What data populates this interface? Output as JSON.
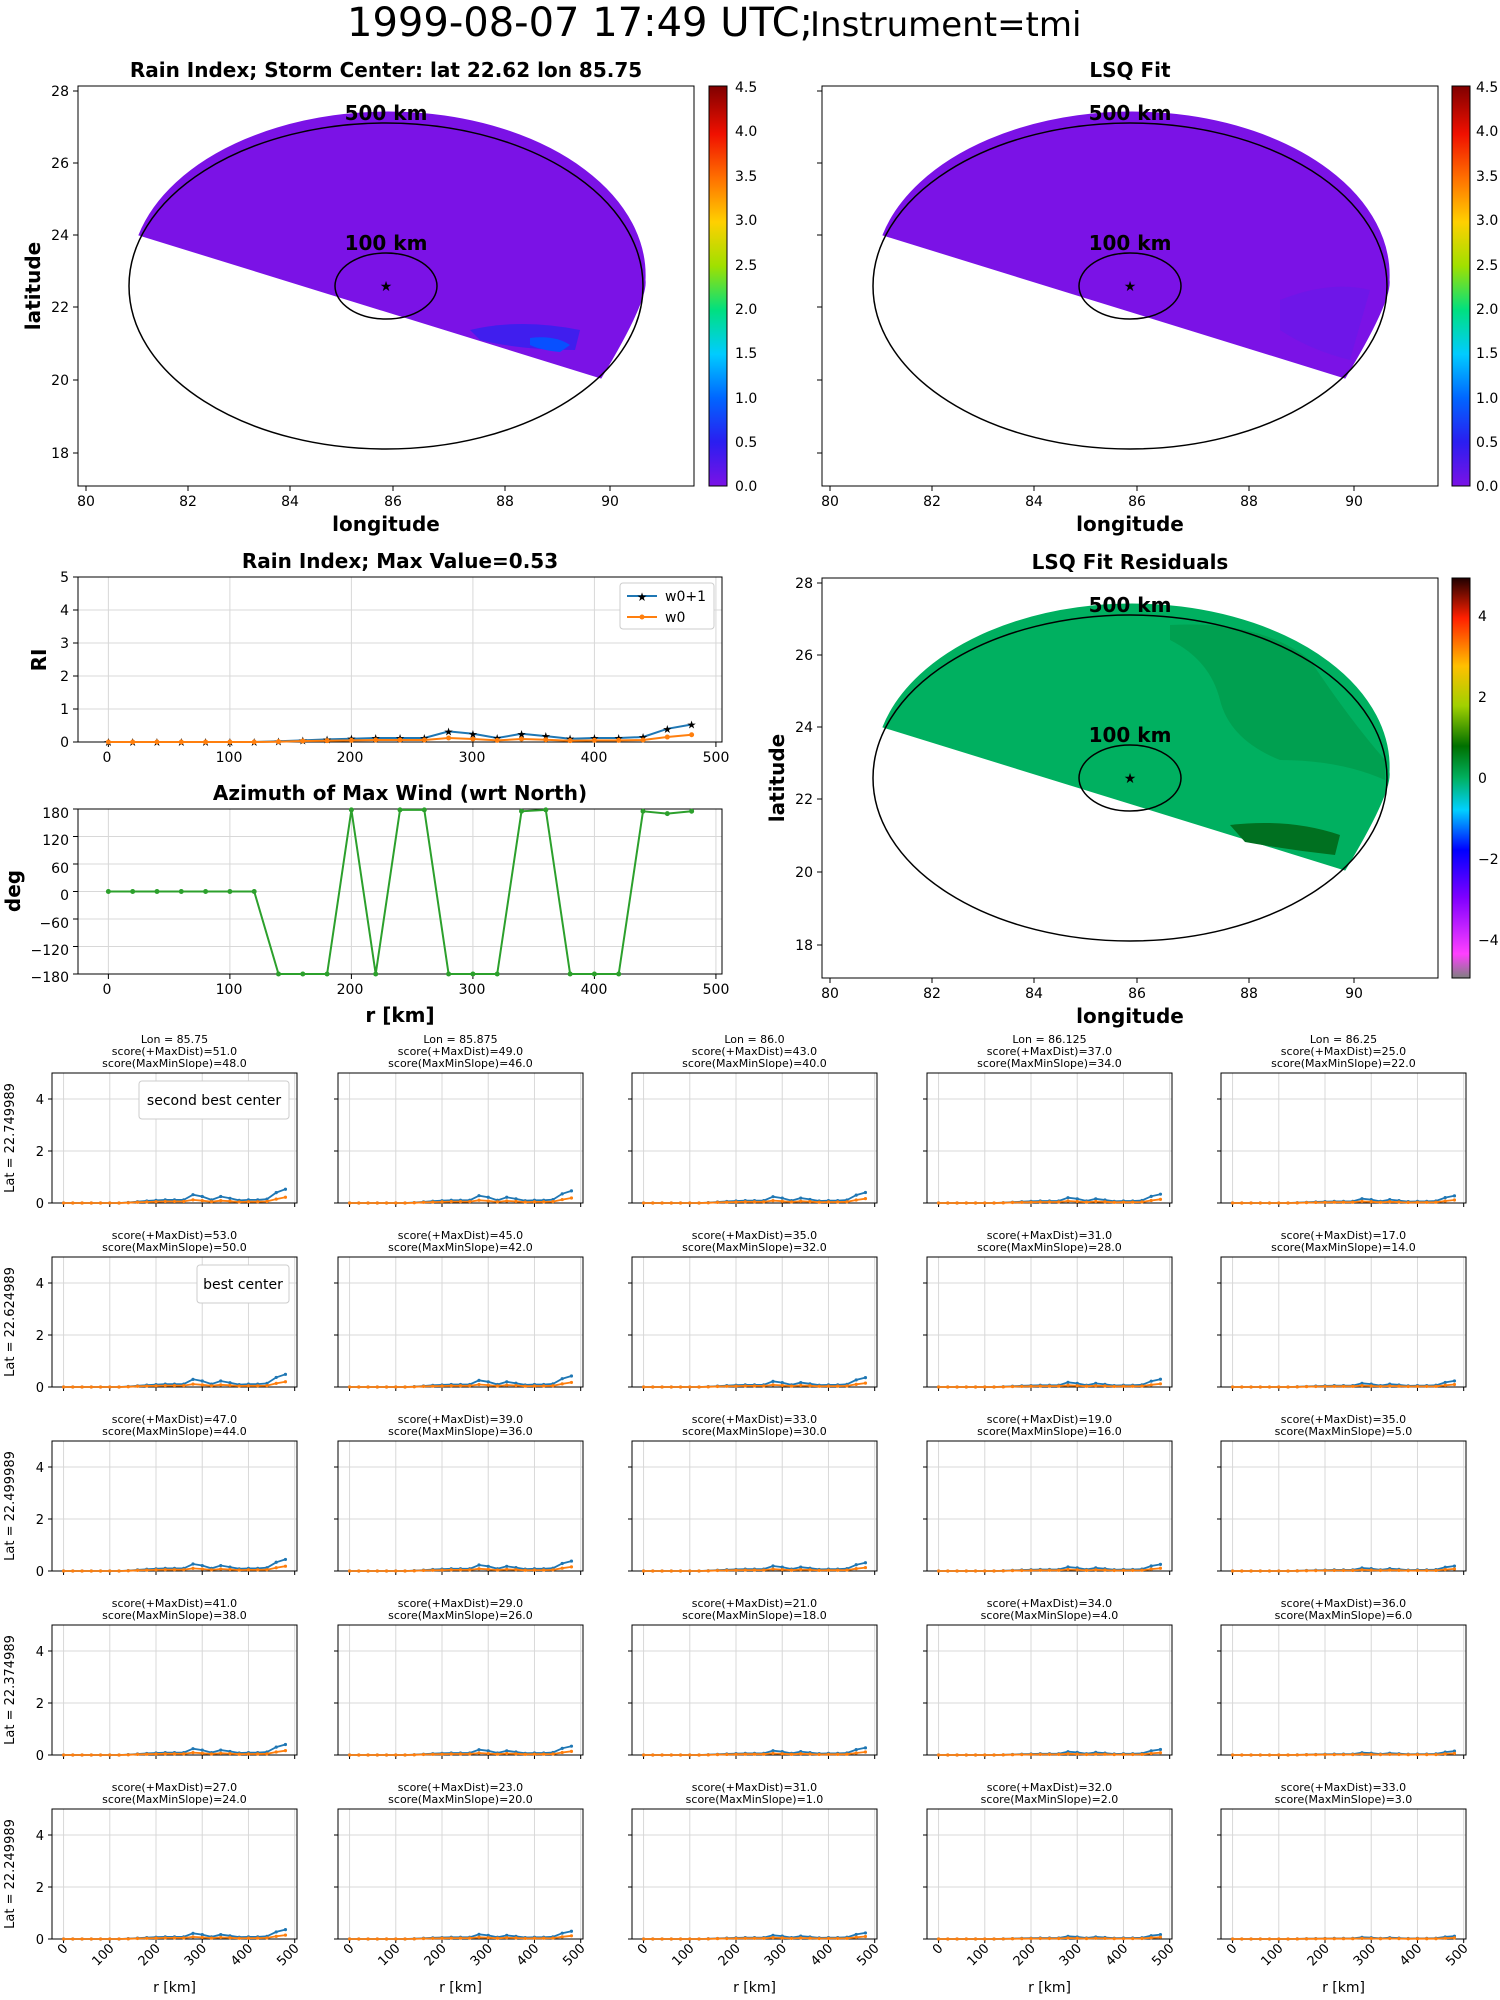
{
  "page": {
    "title_main": "1999-08-07 17:49 UTC;",
    "title_instr": "Instrument=tmi"
  },
  "maps": {
    "rain_index": {
      "title": "Rain Index; Storm Center: lat 22.62 lon 85.75",
      "xlabel": "longitude",
      "ylabel": "latitude",
      "xticks": [
        "80",
        "82",
        "84",
        "86",
        "88",
        "90"
      ],
      "yticks": [
        "18",
        "20",
        "22",
        "24",
        "26",
        "28"
      ],
      "ring_outer_label": "500 km",
      "ring_inner_label": "100 km",
      "colorbar_ticks": [
        "0.0",
        "0.5",
        "1.0",
        "1.5",
        "2.0",
        "2.5",
        "3.0",
        "3.5",
        "4.0",
        "4.5"
      ]
    },
    "lsq_fit": {
      "title": "LSQ Fit",
      "xlabel": "longitude",
      "xticks": [
        "80",
        "82",
        "84",
        "86",
        "88",
        "90"
      ],
      "ring_outer_label": "500 km",
      "ring_inner_label": "100 km",
      "colorbar_ticks": [
        "0.0",
        "0.5",
        "1.0",
        "1.5",
        "2.0",
        "2.5",
        "3.0",
        "3.5",
        "4.0",
        "4.5"
      ]
    },
    "residuals": {
      "title": "LSQ Fit Residuals",
      "xlabel": "longitude",
      "ylabel": "latitude",
      "xticks": [
        "80",
        "82",
        "84",
        "86",
        "88",
        "90"
      ],
      "yticks": [
        "18",
        "20",
        "22",
        "24",
        "26",
        "28"
      ],
      "ring_outer_label": "500 km",
      "ring_inner_label": "100 km",
      "colorbar_ticks": [
        "4",
        "2",
        "0",
        "−2",
        "−4"
      ]
    }
  },
  "ri_plot": {
    "title": "Rain Index; Max Value=0.53",
    "ylabel": "RI",
    "yticks": [
      "0",
      "1",
      "2",
      "3",
      "4",
      "5"
    ],
    "xticks": [
      "0",
      "100",
      "200",
      "300",
      "400",
      "500"
    ],
    "legend": [
      "w0+1",
      "w0"
    ]
  },
  "az_plot": {
    "title": "Azimuth of Max Wind (wrt North)",
    "ylabel": "deg",
    "xlabel": "r [km]",
    "yticks": [
      "180",
      "120",
      "60",
      "0",
      "−60",
      "−120",
      "−180"
    ],
    "xticks": [
      "0",
      "100",
      "200",
      "300",
      "400",
      "500"
    ]
  },
  "grid_panels": {
    "row_labels": [
      "Lat = 22.749989",
      "Lat = 22.624989",
      "Lat = 22.499989",
      "Lat = 22.374989",
      "Lat = 22.249989"
    ],
    "col_headers": [
      "Lon = 85.75",
      "Lon = 85.875",
      "Lon = 86.0",
      "Lon = 86.125",
      "Lon = 86.25"
    ],
    "yticks": [
      "0",
      "2",
      "4"
    ],
    "xticks": [
      "0",
      "100",
      "200",
      "300",
      "400",
      "500"
    ],
    "xlabel": "r [km]",
    "legend_second": "second best center",
    "legend_best": "best center",
    "scores": [
      [
        [
          "score(+MaxDist)=51.0",
          "score(MaxMinSlope)=48.0"
        ],
        [
          "score(+MaxDist)=49.0",
          "score(MaxMinSlope)=46.0"
        ],
        [
          "score(+MaxDist)=43.0",
          "score(MaxMinSlope)=40.0"
        ],
        [
          "score(+MaxDist)=37.0",
          "score(MaxMinSlope)=34.0"
        ],
        [
          "score(+MaxDist)=25.0",
          "score(MaxMinSlope)=22.0"
        ]
      ],
      [
        [
          "score(+MaxDist)=53.0",
          "score(MaxMinSlope)=50.0"
        ],
        [
          "score(+MaxDist)=45.0",
          "score(MaxMinSlope)=42.0"
        ],
        [
          "score(+MaxDist)=35.0",
          "score(MaxMinSlope)=32.0"
        ],
        [
          "score(+MaxDist)=31.0",
          "score(MaxMinSlope)=28.0"
        ],
        [
          "score(+MaxDist)=17.0",
          "score(MaxMinSlope)=14.0"
        ]
      ],
      [
        [
          "score(+MaxDist)=47.0",
          "score(MaxMinSlope)=44.0"
        ],
        [
          "score(+MaxDist)=39.0",
          "score(MaxMinSlope)=36.0"
        ],
        [
          "score(+MaxDist)=33.0",
          "score(MaxMinSlope)=30.0"
        ],
        [
          "score(+MaxDist)=19.0",
          "score(MaxMinSlope)=16.0"
        ],
        [
          "score(+MaxDist)=35.0",
          "score(MaxMinSlope)=5.0"
        ]
      ],
      [
        [
          "score(+MaxDist)=41.0",
          "score(MaxMinSlope)=38.0"
        ],
        [
          "score(+MaxDist)=29.0",
          "score(MaxMinSlope)=26.0"
        ],
        [
          "score(+MaxDist)=21.0",
          "score(MaxMinSlope)=18.0"
        ],
        [
          "score(+MaxDist)=34.0",
          "score(MaxMinSlope)=4.0"
        ],
        [
          "score(+MaxDist)=36.0",
          "score(MaxMinSlope)=6.0"
        ]
      ],
      [
        [
          "score(+MaxDist)=27.0",
          "score(MaxMinSlope)=24.0"
        ],
        [
          "score(+MaxDist)=23.0",
          "score(MaxMinSlope)=20.0"
        ],
        [
          "score(+MaxDist)=31.0",
          "score(MaxMinSlope)=1.0"
        ],
        [
          "score(+MaxDist)=32.0",
          "score(MaxMinSlope)=2.0"
        ],
        [
          "score(+MaxDist)=33.0",
          "score(MaxMinSlope)=3.0"
        ]
      ]
    ]
  },
  "colors": {
    "w0p1": "#1f77b4",
    "w0": "#ff7f0e",
    "azimuth": "#2ca02c",
    "rain_fill": "#7b12e6",
    "resid_fill": "#00b060",
    "best": "#800080",
    "second": "#e00000"
  },
  "chart_data": [
    {
      "type": "line",
      "title": "Rain Index; Max Value=0.53",
      "ylabel": "RI",
      "ylim": [
        0,
        5
      ],
      "xlim": [
        -25,
        505
      ],
      "x": [
        0,
        20,
        40,
        60,
        80,
        100,
        120,
        140,
        160,
        180,
        200,
        220,
        240,
        260,
        280,
        300,
        320,
        340,
        360,
        380,
        400,
        420,
        440,
        460,
        480
      ],
      "series": [
        {
          "name": "w0+1",
          "values": [
            0,
            0,
            0,
            0,
            0,
            0,
            0,
            0.02,
            0.05,
            0.08,
            0.1,
            0.12,
            0.12,
            0.12,
            0.32,
            0.25,
            0.12,
            0.25,
            0.18,
            0.1,
            0.12,
            0.12,
            0.15,
            0.4,
            0.53
          ]
        },
        {
          "name": "w0",
          "values": [
            0,
            0,
            0,
            0,
            0,
            0,
            0,
            0.01,
            0.03,
            0.04,
            0.05,
            0.06,
            0.06,
            0.06,
            0.12,
            0.09,
            0.05,
            0.09,
            0.07,
            0.04,
            0.05,
            0.05,
            0.06,
            0.15,
            0.22
          ]
        }
      ],
      "grid": true,
      "legend": "top-right"
    },
    {
      "type": "line",
      "title": "Azimuth of Max Wind (wrt North)",
      "xlabel": "r [km]",
      "ylabel": "deg",
      "ylim": [
        -180,
        180
      ],
      "xlim": [
        -25,
        505
      ],
      "x": [
        0,
        20,
        40,
        60,
        80,
        100,
        120,
        140,
        160,
        180,
        200,
        220,
        240,
        260,
        280,
        300,
        320,
        340,
        360,
        380,
        400,
        420,
        440,
        460,
        480
      ],
      "series": [
        {
          "name": "",
          "values": [
            0,
            0,
            0,
            0,
            0,
            0,
            0,
            -180,
            -180,
            -180,
            178,
            -180,
            178,
            178,
            -180,
            -180,
            -180,
            175,
            178,
            -180,
            -180,
            -180,
            175,
            170,
            175
          ]
        }
      ],
      "grid": true
    }
  ]
}
